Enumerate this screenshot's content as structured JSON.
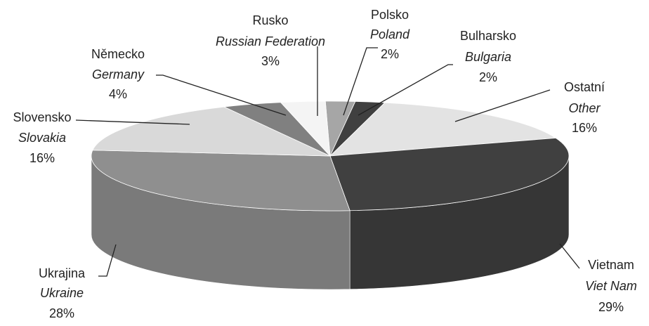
{
  "chart_data": {
    "type": "pie",
    "categories": [
      "Polsko",
      "Bulharsko",
      "Ostatní",
      "Vietnam",
      "Ukrajina",
      "Slovensko",
      "Německo",
      "Rusko"
    ],
    "categories_en": [
      "Poland",
      "Bulgaria",
      "Other",
      "Viet Nam",
      "Ukraine",
      "Slovakia",
      "Germany",
      "Russian Federation"
    ],
    "values": [
      2,
      2,
      16,
      29,
      28,
      16,
      4,
      3
    ],
    "value_labels": [
      "2%",
      "2%",
      "16%",
      "29%",
      "28%",
      "16%",
      "4%",
      "3%"
    ],
    "colors": [
      "#a6a6a6",
      "#404040",
      "#e3e3e3",
      "#404040",
      "#8f8f8f",
      "#d9d9d9",
      "#808080",
      "#f4f4f4"
    ]
  }
}
